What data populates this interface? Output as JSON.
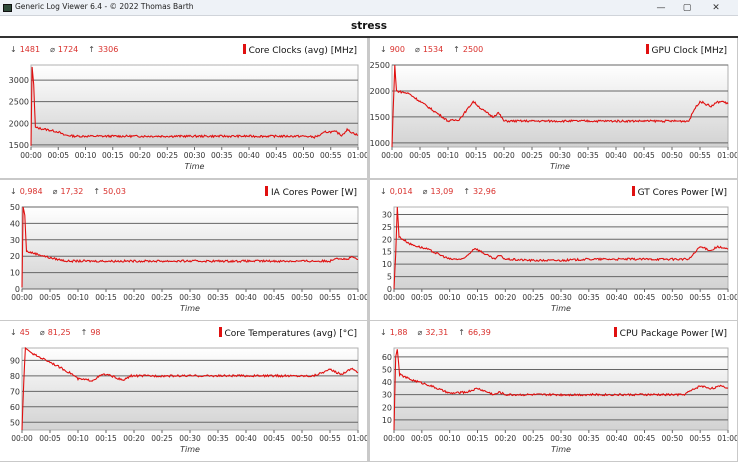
{
  "window": {
    "title": "Generic Log Viewer 6.4 - © 2022 Thomas Barth",
    "minimize_icon": "minimize-icon",
    "maximize_icon": "maximize-icon",
    "close_icon": "close-icon"
  },
  "header": {
    "title": "stress"
  },
  "colors": {
    "series": "#e01010",
    "stats": "#d9302c"
  },
  "chart_data": [
    {
      "type": "line",
      "title": "Core Clocks (avg) [MHz]",
      "stats": {
        "min": "1481",
        "avg": "1724",
        "max": "3306"
      },
      "xlabel": "Time",
      "ylabel": "",
      "ylim": [
        1450,
        3350
      ],
      "yticks": [
        "1500",
        "2000",
        "2500",
        "3000"
      ],
      "xticks": [
        "00:00",
        "00:05",
        "00:10",
        "00:15",
        "00:20",
        "00:25",
        "00:30",
        "00:35",
        "00:40",
        "00:45",
        "00:50",
        "00:55",
        "01:00"
      ],
      "xlim_minutes": [
        0,
        60
      ],
      "grid": true,
      "x": [
        0,
        0.2,
        0.5,
        0.8,
        3,
        5,
        6,
        8,
        50,
        52,
        53,
        54,
        56,
        57,
        58,
        59,
        60
      ],
      "y": [
        1481,
        3306,
        2900,
        1900,
        1850,
        1800,
        1730,
        1700,
        1700,
        1680,
        1720,
        1800,
        1800,
        1720,
        1850,
        1780,
        1720
      ]
    },
    {
      "type": "line",
      "title": "GPU Clock [MHz]",
      "stats": {
        "min": "900",
        "avg": "1534",
        "max": "2500"
      },
      "xlabel": "Time",
      "ylabel": "",
      "ylim": [
        920,
        2500
      ],
      "yticks": [
        "1000",
        "1500",
        "2000",
        "2500"
      ],
      "xticks": [
        "00:00",
        "00:05",
        "00:10",
        "00:15",
        "00:20",
        "00:25",
        "00:30",
        "00:35",
        "00:40",
        "00:45",
        "00:50",
        "00:55",
        "01:00"
      ],
      "xlim_minutes": [
        0,
        60
      ],
      "grid": true,
      "x": [
        0,
        0.2,
        0.5,
        0.8,
        3,
        5,
        7,
        9,
        10,
        12,
        13.5,
        14.5,
        16,
        18,
        19,
        20,
        53,
        54,
        55,
        57,
        58,
        59,
        60
      ],
      "y": [
        900,
        1600,
        2500,
        2000,
        1950,
        1800,
        1650,
        1500,
        1420,
        1450,
        1650,
        1800,
        1650,
        1500,
        1580,
        1420,
        1420,
        1650,
        1800,
        1700,
        1780,
        1800,
        1750
      ]
    },
    {
      "type": "line",
      "title": "IA Cores Power [W]",
      "stats": {
        "min": "0,984",
        "avg": "17,32",
        "max": "50,03"
      },
      "xlabel": "Time",
      "ylabel": "",
      "ylim": [
        0,
        50
      ],
      "yticks": [
        "0",
        "10",
        "20",
        "30",
        "40",
        "50"
      ],
      "xticks": [
        "00:00",
        "00:05",
        "00:10",
        "00:15",
        "00:20",
        "00:25",
        "00:30",
        "00:35",
        "00:40",
        "00:45",
        "00:50",
        "00:55",
        "01:00"
      ],
      "xlim_minutes": [
        0,
        60
      ],
      "grid": true,
      "x": [
        0,
        0.2,
        0.5,
        0.8,
        3,
        5,
        8,
        55,
        56,
        58,
        59,
        60
      ],
      "y": [
        1,
        50,
        45,
        23,
        21,
        19,
        17,
        17,
        19,
        18,
        19.5,
        18
      ]
    },
    {
      "type": "line",
      "title": "GT Cores Power [W]",
      "stats": {
        "min": "0,014",
        "avg": "13,09",
        "max": "32,96"
      },
      "xlabel": "Time",
      "ylabel": "",
      "ylim": [
        0,
        33
      ],
      "yticks": [
        "0",
        "5",
        "10",
        "15",
        "20",
        "25",
        "30"
      ],
      "xticks": [
        "00:00",
        "00:05",
        "00:10",
        "00:15",
        "00:20",
        "00:25",
        "00:30",
        "00:35",
        "00:40",
        "00:45",
        "00:50",
        "00:55",
        "01:00"
      ],
      "xlim_minutes": [
        0,
        60
      ],
      "grid": true,
      "x": [
        0,
        0.3,
        0.6,
        0.9,
        3,
        6,
        10,
        12.5,
        14.5,
        18,
        19,
        20,
        25,
        30,
        35,
        52,
        53,
        55,
        57,
        58,
        60
      ],
      "y": [
        0,
        14,
        33,
        21,
        18,
        16,
        12,
        12,
        16.5,
        12,
        13.5,
        12,
        11.5,
        11.5,
        12,
        12,
        12,
        17,
        15.5,
        17,
        16
      ]
    },
    {
      "type": "line",
      "title": "Core Temperatures (avg) [°C]",
      "stats": {
        "min": "45",
        "avg": "81,25",
        "max": "98"
      },
      "xlabel": "Time",
      "ylabel": "",
      "ylim": [
        45,
        98
      ],
      "yticks": [
        "50",
        "60",
        "70",
        "80",
        "90"
      ],
      "xticks": [
        "00:00",
        "00:05",
        "00:10",
        "00:15",
        "00:20",
        "00:25",
        "00:30",
        "00:35",
        "00:40",
        "00:45",
        "00:50",
        "00:55",
        "01:00"
      ],
      "xlim_minutes": [
        0,
        60
      ],
      "grid": true,
      "x": [
        0,
        0.3,
        0.6,
        2,
        5,
        9,
        10,
        12.5,
        14.5,
        16,
        18,
        19.5,
        52,
        55,
        57,
        59,
        60
      ],
      "y": [
        45,
        75,
        98,
        94,
        89,
        81,
        78,
        77,
        81,
        80,
        77,
        80,
        80,
        84,
        81,
        85,
        82
      ]
    },
    {
      "type": "line",
      "title": "CPU Package Power [W]",
      "stats": {
        "min": "1,88",
        "avg": "32,31",
        "max": "66,39"
      },
      "xlabel": "Time",
      "ylabel": "",
      "ylim": [
        2,
        67
      ],
      "yticks": [
        "10",
        "20",
        "30",
        "40",
        "50",
        "60"
      ],
      "xticks": [
        "00:00",
        "00:05",
        "00:10",
        "00:15",
        "00:20",
        "00:25",
        "00:30",
        "00:35",
        "00:40",
        "00:45",
        "00:50",
        "00:55",
        "01:00"
      ],
      "xlim_minutes": [
        0,
        60
      ],
      "grid": true,
      "x": [
        0,
        0.3,
        0.6,
        1,
        3,
        6,
        10,
        13,
        15,
        18,
        19,
        20,
        52,
        55,
        57,
        59,
        60
      ],
      "y": [
        2,
        60,
        66,
        46,
        42,
        38,
        31,
        32,
        35,
        30,
        32,
        30,
        30,
        37,
        35,
        37,
        35
      ]
    }
  ]
}
